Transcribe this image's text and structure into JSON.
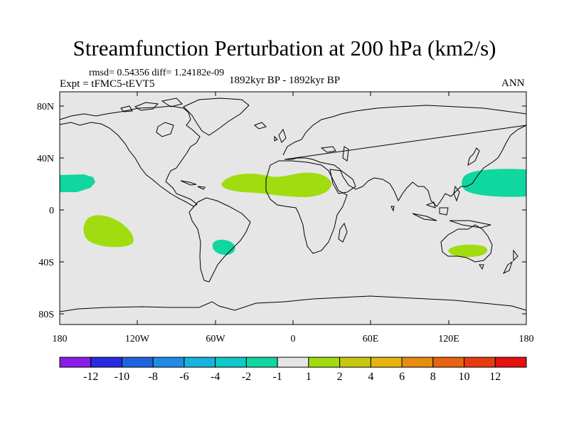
{
  "title": "Streamfunction Perturbation at 200 hPa (km2/s)",
  "stats_line": "rmsd= 0.54356  diff= 1.24182e-09",
  "experiment": "Expt = tFMC5-tEVT5",
  "period": "1892kyr BP - 1892kyr BP",
  "season": "ANN",
  "map": {
    "lat_ticks": [
      "80N",
      "40N",
      "0",
      "40S",
      "80S"
    ],
    "lon_ticks": [
      "180",
      "120W",
      "60W",
      "0",
      "60E",
      "120E",
      "180"
    ]
  },
  "colorbar": {
    "labels": [
      "-12",
      "-10",
      "-8",
      "-6",
      "-4",
      "-2",
      "-1",
      "1",
      "2",
      "4",
      "6",
      "8",
      "10",
      "12"
    ],
    "colors": [
      "#8a1ee8",
      "#2a2ae0",
      "#1e64e0",
      "#1e8ce6",
      "#16b4dc",
      "#10c8c8",
      "#10d6a0",
      "#e6e6e6",
      "#a0dc10",
      "#c8c810",
      "#e6b410",
      "#e68c10",
      "#e66410",
      "#e63c10",
      "#e61010"
    ]
  },
  "colors": {
    "ocean_land_bg": "#e6e6e6",
    "negative_anomaly": "#10d6a0",
    "positive_anomaly": "#a0dc10"
  }
}
